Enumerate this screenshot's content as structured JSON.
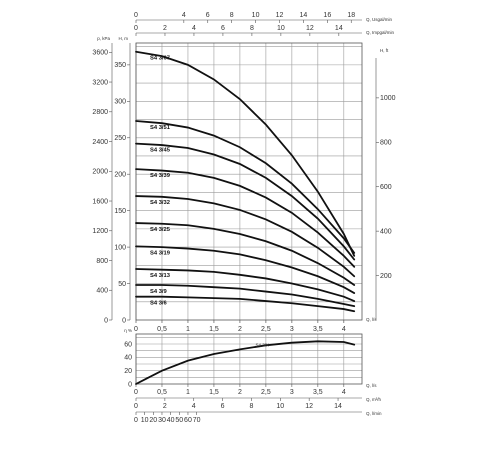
{
  "chart_data": [
    {
      "type": "line",
      "title": "",
      "x_axes": {
        "bottom_q_ls": {
          "label": "Q, l/s",
          "ticks": [
            "0",
            "0,5",
            "1",
            "1,5",
            "2",
            "2,5",
            "3",
            "3,5",
            "4"
          ],
          "range": [
            0,
            4.35
          ]
        },
        "top_q_usgpm": {
          "label": "Q, Usgal/min",
          "ticks": [
            "0",
            "4",
            "6",
            "8",
            "10",
            "12",
            "14",
            "16",
            "18"
          ],
          "range": [
            0,
            18.9
          ]
        },
        "top_q_impgpm": {
          "label": "Q, Impgal/min",
          "ticks": [
            "0",
            "2",
            "4",
            "6",
            "8",
            "10",
            "12",
            "14"
          ],
          "range": [
            0,
            15.6
          ]
        }
      },
      "y_axes": {
        "left_h_m": {
          "label": "H, m",
          "ticks": [
            "0",
            "50",
            "100",
            "150",
            "200",
            "250",
            "300",
            "350"
          ],
          "range": [
            0,
            380
          ]
        },
        "left_p_kpa": {
          "label": "p, kPa",
          "ticks": [
            "0",
            "400",
            "800",
            "1200",
            "1600",
            "2000",
            "2400",
            "2800",
            "3200",
            "3600"
          ],
          "range": [
            0,
            3725
          ]
        },
        "right_h_ft": {
          "label": "H, ft",
          "ticks": [
            "200",
            "400",
            "600",
            "800",
            "1000"
          ],
          "range": [
            0,
            1247
          ]
        }
      },
      "grid": true,
      "series": [
        {
          "name": "S4 3/67",
          "x": [
            0,
            0.5,
            1,
            1.5,
            2,
            2.5,
            3,
            3.5,
            4,
            4.2
          ],
          "y": [
            368,
            362,
            350,
            330,
            303,
            268,
            226,
            176,
            118,
            88
          ]
        },
        {
          "name": "S4 3/51",
          "x": [
            0,
            0.5,
            1,
            1.5,
            2,
            2.5,
            3,
            3.5,
            4,
            4.2
          ],
          "y": [
            273,
            270,
            264,
            253,
            237,
            215,
            187,
            152,
            112,
            92
          ]
        },
        {
          "name": "S4 3/45",
          "x": [
            0,
            0.5,
            1,
            1.5,
            2,
            2.5,
            3,
            3.5,
            4,
            4.2
          ],
          "y": [
            242,
            240,
            236,
            227,
            214,
            195,
            170,
            139,
            101,
            83
          ]
        },
        {
          "name": "S4 3/39",
          "x": [
            0,
            0.5,
            1,
            1.5,
            2,
            2.5,
            3,
            3.5,
            4,
            4.2
          ],
          "y": [
            207,
            205,
            202,
            195,
            184,
            168,
            147,
            120,
            88,
            73
          ]
        },
        {
          "name": "S4 3/32",
          "x": [
            0,
            0.5,
            1,
            1.5,
            2,
            2.5,
            3,
            3.5,
            4,
            4.2
          ],
          "y": [
            170,
            169,
            166,
            160,
            151,
            138,
            121,
            99,
            73,
            60
          ]
        },
        {
          "name": "S4 3/25",
          "x": [
            0,
            0.5,
            1,
            1.5,
            2,
            2.5,
            3,
            3.5,
            4,
            4.2
          ],
          "y": [
            133,
            132,
            130,
            125,
            118,
            108,
            95,
            78,
            58,
            48
          ]
        },
        {
          "name": "S4 3/19",
          "x": [
            0,
            0.5,
            1,
            1.5,
            2,
            2.5,
            3,
            3.5,
            4,
            4.2
          ],
          "y": [
            101,
            100,
            98,
            95,
            90,
            82,
            72,
            60,
            45,
            37
          ]
        },
        {
          "name": "S4 3/13",
          "x": [
            0,
            0.5,
            1,
            1.5,
            2,
            2.5,
            3,
            3.5,
            4,
            4.2
          ],
          "y": [
            70,
            69,
            68,
            66,
            62,
            57,
            50,
            42,
            32,
            26
          ]
        },
        {
          "name": "S4 3/9",
          "x": [
            0,
            0.5,
            1,
            1.5,
            2,
            2.5,
            3,
            3.5,
            4,
            4.2
          ],
          "y": [
            48,
            48,
            47,
            45,
            43,
            39,
            35,
            29,
            22,
            19
          ]
        },
        {
          "name": "S4 3/6",
          "x": [
            0,
            0.5,
            1,
            1.5,
            2,
            2.5,
            3,
            3.5,
            4,
            4.2
          ],
          "y": [
            32,
            32,
            31,
            30,
            29,
            26,
            23,
            19,
            15,
            12
          ]
        }
      ]
    },
    {
      "type": "line",
      "title": "",
      "x_axes": {
        "bottom_q_ls": {
          "label": "Q, l/s",
          "ticks": [
            "0",
            "0,5",
            "1",
            "1,5",
            "2",
            "2,5",
            "3",
            "3,5",
            "4"
          ],
          "range": [
            0,
            4.35
          ]
        },
        "bottom_q_m3h": {
          "label": "Q, m³/h",
          "ticks": [
            "0",
            "2",
            "4",
            "6",
            "8",
            "10",
            "12",
            "14"
          ],
          "range": [
            0,
            15.66
          ]
        },
        "bottom_q_lmin": {
          "label": "Q, l/min",
          "ticks": [
            "0",
            "10",
            "20",
            "30",
            "40",
            "50",
            "60",
            "70"
          ],
          "range": [
            0,
            261
          ]
        }
      },
      "y_axes": {
        "left_eta": {
          "label": "η %",
          "ticks": [
            "0",
            "20",
            "40",
            "60"
          ],
          "range": [
            0,
            75
          ]
        }
      },
      "grid": true,
      "series": [
        {
          "name": "S4 3/X",
          "x": [
            0,
            0.25,
            0.5,
            1,
            1.5,
            2,
            2.5,
            3,
            3.5,
            4,
            4.2
          ],
          "y": [
            0,
            10,
            20,
            35,
            45,
            52,
            58,
            62,
            64,
            63,
            59
          ]
        }
      ]
    }
  ]
}
